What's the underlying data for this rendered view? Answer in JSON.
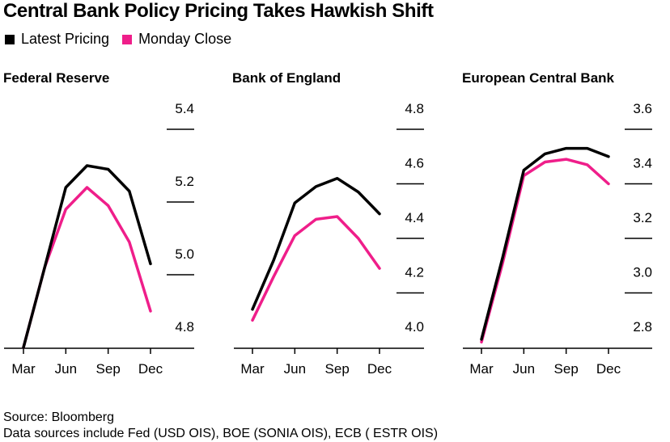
{
  "title": "Central Bank Policy Pricing Takes Hawkish Shift",
  "legend": [
    {
      "label": "Latest Pricing",
      "color": "#000000"
    },
    {
      "label": "Monday Close",
      "color": "#ef1e8a"
    }
  ],
  "source": {
    "line1": "Source: Bloomberg",
    "line2": "Data sources include Fed (USD OIS), BOE (SONIA OIS), ECB ( ESTR OIS)"
  },
  "chart_data": [
    {
      "type": "line",
      "title": "Federal Reserve",
      "x_ticks": [
        "Mar",
        "Jun",
        "Sep",
        "Dec"
      ],
      "y_ticks": [
        "5.4",
        "5.2",
        "5.0",
        "4.8"
      ],
      "ylim": [
        4.8,
        5.4
      ],
      "x": [
        0,
        1,
        2,
        3,
        4,
        5,
        6
      ],
      "series": [
        {
          "name": "Latest Pricing",
          "color": "#000000",
          "values": [
            4.8,
            5.02,
            5.24,
            5.3,
            5.29,
            5.23,
            5.03
          ]
        },
        {
          "name": "Monday Close",
          "color": "#ef1e8a",
          "values": [
            4.8,
            5.02,
            5.18,
            5.24,
            5.19,
            5.09,
            4.9
          ]
        }
      ]
    },
    {
      "type": "line",
      "title": "Bank of England",
      "x_ticks": [
        "Mar",
        "Jun",
        "Sep",
        "Dec"
      ],
      "y_ticks": [
        "4.8",
        "4.6",
        "4.4",
        "4.2",
        "4.0"
      ],
      "ylim": [
        4.0,
        4.8
      ],
      "x": [
        0,
        1,
        2,
        3,
        4,
        5,
        6
      ],
      "series": [
        {
          "name": "Latest Pricing",
          "color": "#000000",
          "values": [
            4.14,
            4.32,
            4.53,
            4.59,
            4.62,
            4.57,
            4.49
          ]
        },
        {
          "name": "Monday Close",
          "color": "#ef1e8a",
          "values": [
            4.1,
            4.26,
            4.41,
            4.47,
            4.48,
            4.4,
            4.29
          ]
        }
      ]
    },
    {
      "type": "line",
      "title": "European Central Bank",
      "x_ticks": [
        "Mar",
        "Jun",
        "Sep",
        "Dec"
      ],
      "y_ticks": [
        "3.6",
        "3.4",
        "3.2",
        "3.0",
        "2.8"
      ],
      "ylim": [
        2.8,
        3.6
      ],
      "x": [
        0,
        1,
        2,
        3,
        4,
        5,
        6
      ],
      "series": [
        {
          "name": "Latest Pricing",
          "color": "#000000",
          "values": [
            2.83,
            3.13,
            3.45,
            3.51,
            3.53,
            3.53,
            3.5
          ]
        },
        {
          "name": "Monday Close",
          "color": "#ef1e8a",
          "values": [
            2.82,
            3.11,
            3.43,
            3.48,
            3.49,
            3.47,
            3.4
          ]
        }
      ]
    }
  ]
}
